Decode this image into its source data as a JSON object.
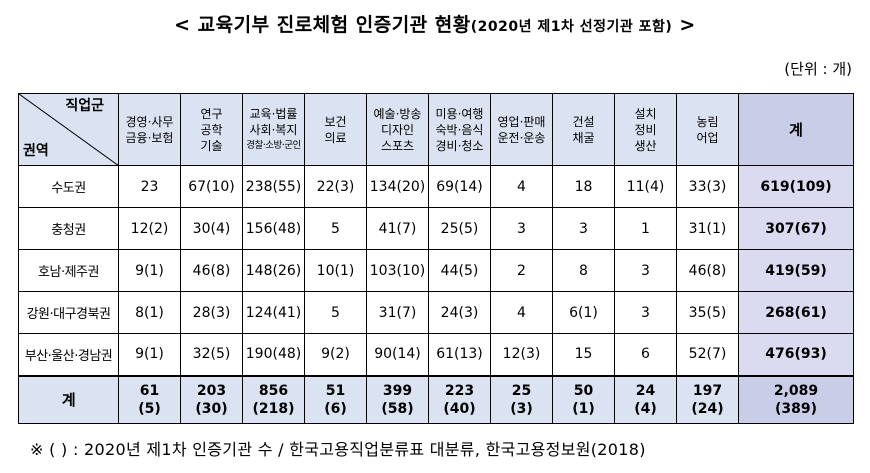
{
  "title_main": "< 교육기부 진로체험 인증기관 현황",
  "title_sub": "(2020년 제1차 선정기관 포함)",
  "title_end": " >",
  "unit": "(단위 : 개)",
  "corner_top": "직업군",
  "corner_bottom": "권역",
  "headers": [
    {
      "l1": "경영·사무",
      "l2": "금융·보험",
      "l3": ""
    },
    {
      "l1": "연구",
      "l2": "공학",
      "l3": "기술"
    },
    {
      "l1": "교육·법률",
      "l2": "사회·복지",
      "l3": "경찰·소방·군인"
    },
    {
      "l1": "보건",
      "l2": "의료",
      "l3": ""
    },
    {
      "l1": "예술·방송",
      "l2": "디자인",
      "l3": "스포츠"
    },
    {
      "l1": "미용·여행",
      "l2": "숙박·음식",
      "l3": "경비·청소"
    },
    {
      "l1": "영업·판매",
      "l2": "운전·운송",
      "l3": ""
    },
    {
      "l1": "건설",
      "l2": "채굴",
      "l3": ""
    },
    {
      "l1": "설치",
      "l2": "정비",
      "l3": "생산"
    },
    {
      "l1": "농림",
      "l2": "어업",
      "l3": ""
    }
  ],
  "total_header": "계",
  "rows": [
    {
      "region": "수도권",
      "values": [
        "23",
        "67(10)",
        "238(55)",
        "22(3)",
        "134(20)",
        "69(14)",
        "4",
        "18",
        "11(4)",
        "33(3)"
      ],
      "total": "619(109)"
    },
    {
      "region": "충청권",
      "values": [
        "12(2)",
        "30(4)",
        "156(48)",
        "5",
        "41(7)",
        "25(5)",
        "3",
        "3",
        "1",
        "31(1)"
      ],
      "total": "307(67)"
    },
    {
      "region": "호남·제주권",
      "values": [
        "9(1)",
        "46(8)",
        "148(26)",
        "10(1)",
        "103(10)",
        "44(5)",
        "2",
        "8",
        "3",
        "46(8)"
      ],
      "total": "419(59)"
    },
    {
      "region": "강원·대구경북권",
      "values": [
        "8(1)",
        "28(3)",
        "124(41)",
        "5",
        "31(7)",
        "24(3)",
        "4",
        "6(1)",
        "3",
        "35(5)"
      ],
      "total": "268(61)"
    },
    {
      "region": "부산·울산·경남권",
      "values": [
        "9(1)",
        "32(5)",
        "190(48)",
        "9(2)",
        "90(14)",
        "61(13)",
        "12(3)",
        "15",
        "6",
        "52(7)"
      ],
      "total": "476(93)"
    }
  ],
  "sum_row": {
    "label": "계",
    "values": [
      {
        "a": "61",
        "b": "(5)"
      },
      {
        "a": "203",
        "b": "(30)"
      },
      {
        "a": "856",
        "b": "(218)"
      },
      {
        "a": "51",
        "b": "(6)"
      },
      {
        "a": "399",
        "b": "(58)"
      },
      {
        "a": "223",
        "b": "(40)"
      },
      {
        "a": "25",
        "b": "(3)"
      },
      {
        "a": "50",
        "b": "(1)"
      },
      {
        "a": "24",
        "b": "(4)"
      },
      {
        "a": "197",
        "b": "(24)"
      }
    ],
    "total": {
      "a": "2,089",
      "b": "(389)"
    }
  },
  "footnote": "※ ( ) : 2020년 제1차 인증기관 수 / 한국고용직업분류표 대분류, 한국고용정보원(2018)"
}
